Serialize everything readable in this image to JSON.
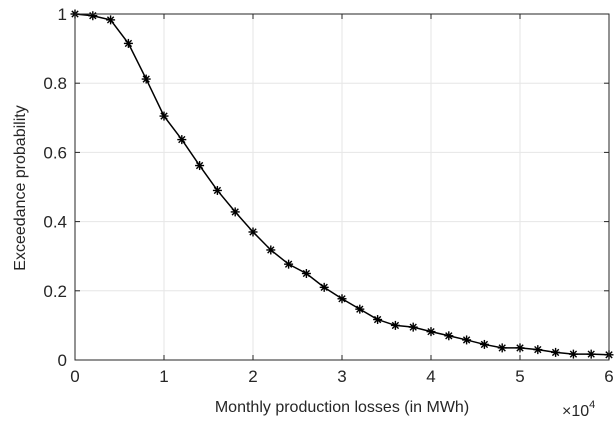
{
  "chart_data": {
    "type": "line",
    "title": "",
    "xlabel": "Monthly production losses (in MWh)",
    "ylabel": "Exceedance probability",
    "x_multiplier_base": "×10",
    "x_multiplier_exp": "4",
    "xlim": [
      0,
      60000
    ],
    "ylim": [
      0,
      1
    ],
    "xticks": [
      0,
      10000,
      20000,
      30000,
      40000,
      50000,
      60000
    ],
    "xtick_labels": [
      "0",
      "1",
      "2",
      "3",
      "4",
      "5",
      "6"
    ],
    "yticks": [
      0,
      0.2,
      0.4,
      0.6,
      0.8,
      1
    ],
    "ytick_labels": [
      "0",
      "0.2",
      "0.4",
      "0.6",
      "0.8",
      "1"
    ],
    "grid": true,
    "marker": "asterisk",
    "line_color": "#000000",
    "grid_color": "#e6e6e6",
    "axis_color": "#262626",
    "series": [
      {
        "x": [
          0,
          2000,
          4000,
          6000,
          8000,
          10000,
          12000,
          14000,
          16000,
          18000,
          20000,
          22000,
          24000,
          26000,
          28000,
          30000,
          32000,
          34000,
          36000,
          38000,
          40000,
          42000,
          44000,
          46000,
          48000,
          50000,
          52000,
          54000,
          56000,
          58000,
          60000
        ],
        "y": [
          1.0,
          0.995,
          0.983,
          0.915,
          0.812,
          0.705,
          0.637,
          0.562,
          0.49,
          0.428,
          0.37,
          0.318,
          0.277,
          0.25,
          0.21,
          0.177,
          0.147,
          0.117,
          0.1,
          0.095,
          0.082,
          0.07,
          0.058,
          0.045,
          0.035,
          0.035,
          0.03,
          0.022,
          0.017,
          0.017,
          0.015
        ]
      }
    ]
  }
}
